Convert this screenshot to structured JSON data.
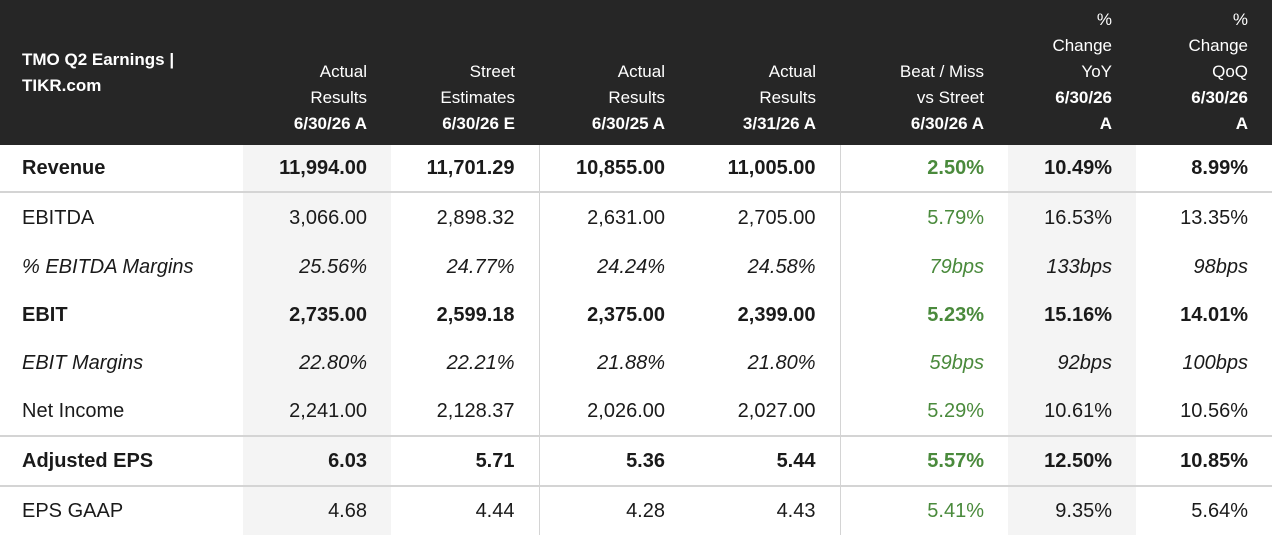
{
  "header": {
    "title_line1": "TMO Q2 Earnings |",
    "title_line2": "TIKR.com",
    "columns": [
      {
        "lines": [
          "Actual",
          "Results"
        ],
        "date": "6/30/26 A"
      },
      {
        "lines": [
          "Street",
          "Estimates"
        ],
        "date": "6/30/26 E"
      },
      {
        "lines": [
          "Actual",
          "Results"
        ],
        "date": "6/30/25 A"
      },
      {
        "lines": [
          "Actual",
          "Results"
        ],
        "date": "3/31/26 A"
      },
      {
        "lines": [
          "Beat / Miss",
          "vs Street"
        ],
        "date": "6/30/26 A"
      },
      {
        "lines": [
          "%",
          "Change",
          "YoY"
        ],
        "date": "6/30/26",
        "date2": "A"
      },
      {
        "lines": [
          "%",
          "Change",
          "QoQ"
        ],
        "date": "6/30/26",
        "date2": "A"
      }
    ]
  },
  "rows": [
    {
      "label": "Revenue",
      "values": [
        "11,994.00",
        "11,701.29",
        "10,855.00",
        "11,005.00",
        "2.50%",
        "10.49%",
        "8.99%"
      ]
    },
    {
      "label": "EBITDA",
      "values": [
        "3,066.00",
        "2,898.32",
        "2,631.00",
        "2,705.00",
        "5.79%",
        "16.53%",
        "13.35%"
      ]
    },
    {
      "label": "% EBITDA Margins",
      "values": [
        "25.56%",
        "24.77%",
        "24.24%",
        "24.58%",
        "79bps",
        "133bps",
        "98bps"
      ]
    },
    {
      "label": "EBIT",
      "values": [
        "2,735.00",
        "2,599.18",
        "2,375.00",
        "2,399.00",
        "5.23%",
        "15.16%",
        "14.01%"
      ]
    },
    {
      "label": "EBIT Margins",
      "values": [
        "22.80%",
        "22.21%",
        "21.88%",
        "21.80%",
        "59bps",
        "92bps",
        "100bps"
      ]
    },
    {
      "label": "Net Income",
      "values": [
        "2,241.00",
        "2,128.37",
        "2,026.00",
        "2,027.00",
        "5.29%",
        "10.61%",
        "10.56%"
      ]
    },
    {
      "label": "Adjusted EPS",
      "values": [
        "6.03",
        "5.71",
        "5.36",
        "5.44",
        "5.57%",
        "12.50%",
        "10.85%"
      ]
    },
    {
      "label": "EPS GAAP",
      "values": [
        "4.68",
        "4.44",
        "4.28",
        "4.43",
        "5.41%",
        "9.35%",
        "5.64%"
      ]
    }
  ],
  "colors": {
    "header_bg": "#262626",
    "beat_green": "#4a8a3c",
    "shade": "#f4f4f4"
  }
}
